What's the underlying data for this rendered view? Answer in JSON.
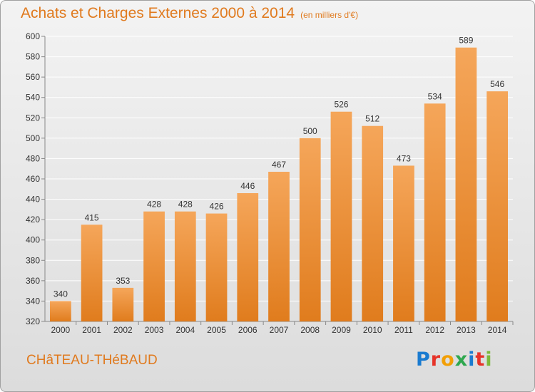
{
  "title": "Achats et Charges Externes 2000 à 2014",
  "subtitle": "(en milliers d'€)",
  "place": "CHâTEAU-THéBAUD",
  "brand": "Proxiti",
  "colors": {
    "title": "#e07a1e",
    "bar_top": "#f5a65a",
    "bar_bottom": "#e07c1d",
    "grid": "#ffffff",
    "axis_text": "#333333",
    "brand_letters": [
      "#1a7bd0",
      "#e63329",
      "#f29f05",
      "#2fa84f",
      "#1a7bd0",
      "#e63329",
      "#7cba3a"
    ]
  },
  "chart_data": {
    "type": "bar",
    "title": "Achats et Charges Externes 2000 à 2014",
    "subtitle": "(en milliers d'€)",
    "xlabel": "",
    "ylabel": "",
    "categories": [
      "2000",
      "2001",
      "2002",
      "2003",
      "2004",
      "2005",
      "2006",
      "2007",
      "2008",
      "2009",
      "2010",
      "2011",
      "2012",
      "2013",
      "2014"
    ],
    "values": [
      340,
      415,
      353,
      428,
      428,
      426,
      446,
      467,
      500,
      526,
      512,
      473,
      534,
      589,
      546
    ],
    "ylim": [
      320,
      600
    ],
    "yticks": [
      320,
      340,
      360,
      380,
      400,
      420,
      440,
      460,
      480,
      500,
      520,
      540,
      560,
      580,
      600
    ],
    "grid": true,
    "data_labels": true
  }
}
